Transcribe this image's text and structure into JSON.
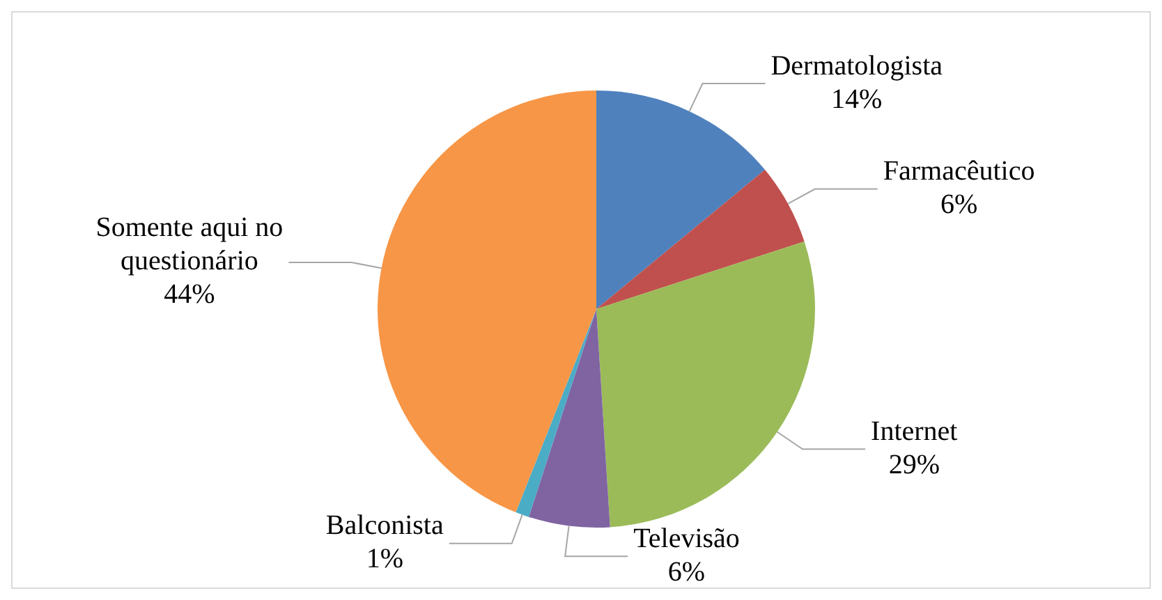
{
  "chart_data": {
    "type": "pie",
    "categories": [
      "Dermatologista",
      "Farmacêutico",
      "Internet",
      "Televisão",
      "Balconista",
      "Somente aqui no questionário"
    ],
    "values": [
      14,
      6,
      29,
      6,
      1,
      44
    ],
    "value_labels": [
      "14%",
      "6%",
      "29%",
      "6%",
      "1%",
      "44%"
    ],
    "colors": [
      "#4f81bd",
      "#c0504d",
      "#9bbb59",
      "#8064a2",
      "#4bacc6",
      "#f79646"
    ],
    "legend": false
  }
}
